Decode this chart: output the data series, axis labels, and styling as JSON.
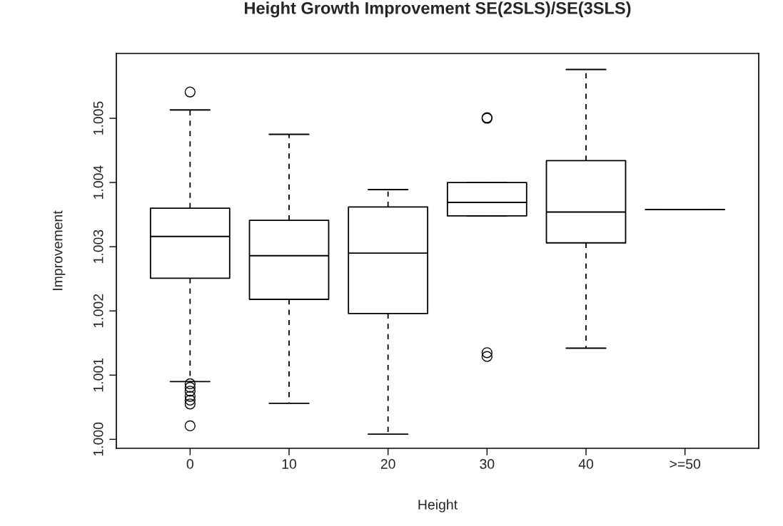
{
  "chart_data": {
    "type": "box",
    "title": "Height Growth Improvement SE(2SLS)/SE(3SLS)",
    "xlabel": "Height",
    "ylabel": "Improvement",
    "categories": [
      "0",
      "10",
      "20",
      "30",
      "40",
      ">=50"
    ],
    "boxes": [
      {
        "low": 1.0009,
        "q1": 1.00251,
        "median": 1.00316,
        "q3": 1.0036,
        "high": 1.00513,
        "outliers": [
          1.00541,
          1.000865,
          1.00081,
          1.00075,
          1.00067,
          1.00061,
          1.00055,
          1.00021
        ]
      },
      {
        "low": 1.00056,
        "q1": 1.00218,
        "median": 1.00286,
        "q3": 1.00341,
        "high": 1.00475
      },
      {
        "low": 1.00008,
        "q1": 1.00196,
        "median": 1.0029,
        "q3": 1.00362,
        "high": 1.00389
      },
      {
        "low": 1.00348,
        "q1": 1.00348,
        "median": 1.00369,
        "q3": 1.004,
        "high": 1.004,
        "outliers": [
          1.005,
          1.00501,
          1.00135,
          1.00129
        ]
      },
      {
        "low": 1.00142,
        "q1": 1.00306,
        "median": 1.00354,
        "q3": 1.00434,
        "high": 1.00576
      },
      {
        "low": 1.00358,
        "q1": 1.00358,
        "median": 1.00358,
        "q3": 1.00358,
        "high": 1.00358
      }
    ],
    "ylim": [
      0.99986,
      1.00601
    ],
    "yticks": [
      {
        "value": 1.0,
        "label": "1.000"
      },
      {
        "value": 1.001,
        "label": "1.001"
      },
      {
        "value": 1.002,
        "label": "1.002"
      },
      {
        "value": 1.003,
        "label": "1.003"
      },
      {
        "value": 1.004,
        "label": "1.004"
      },
      {
        "value": 1.005,
        "label": "1.005"
      }
    ],
    "grid": false,
    "color": "#000000"
  }
}
